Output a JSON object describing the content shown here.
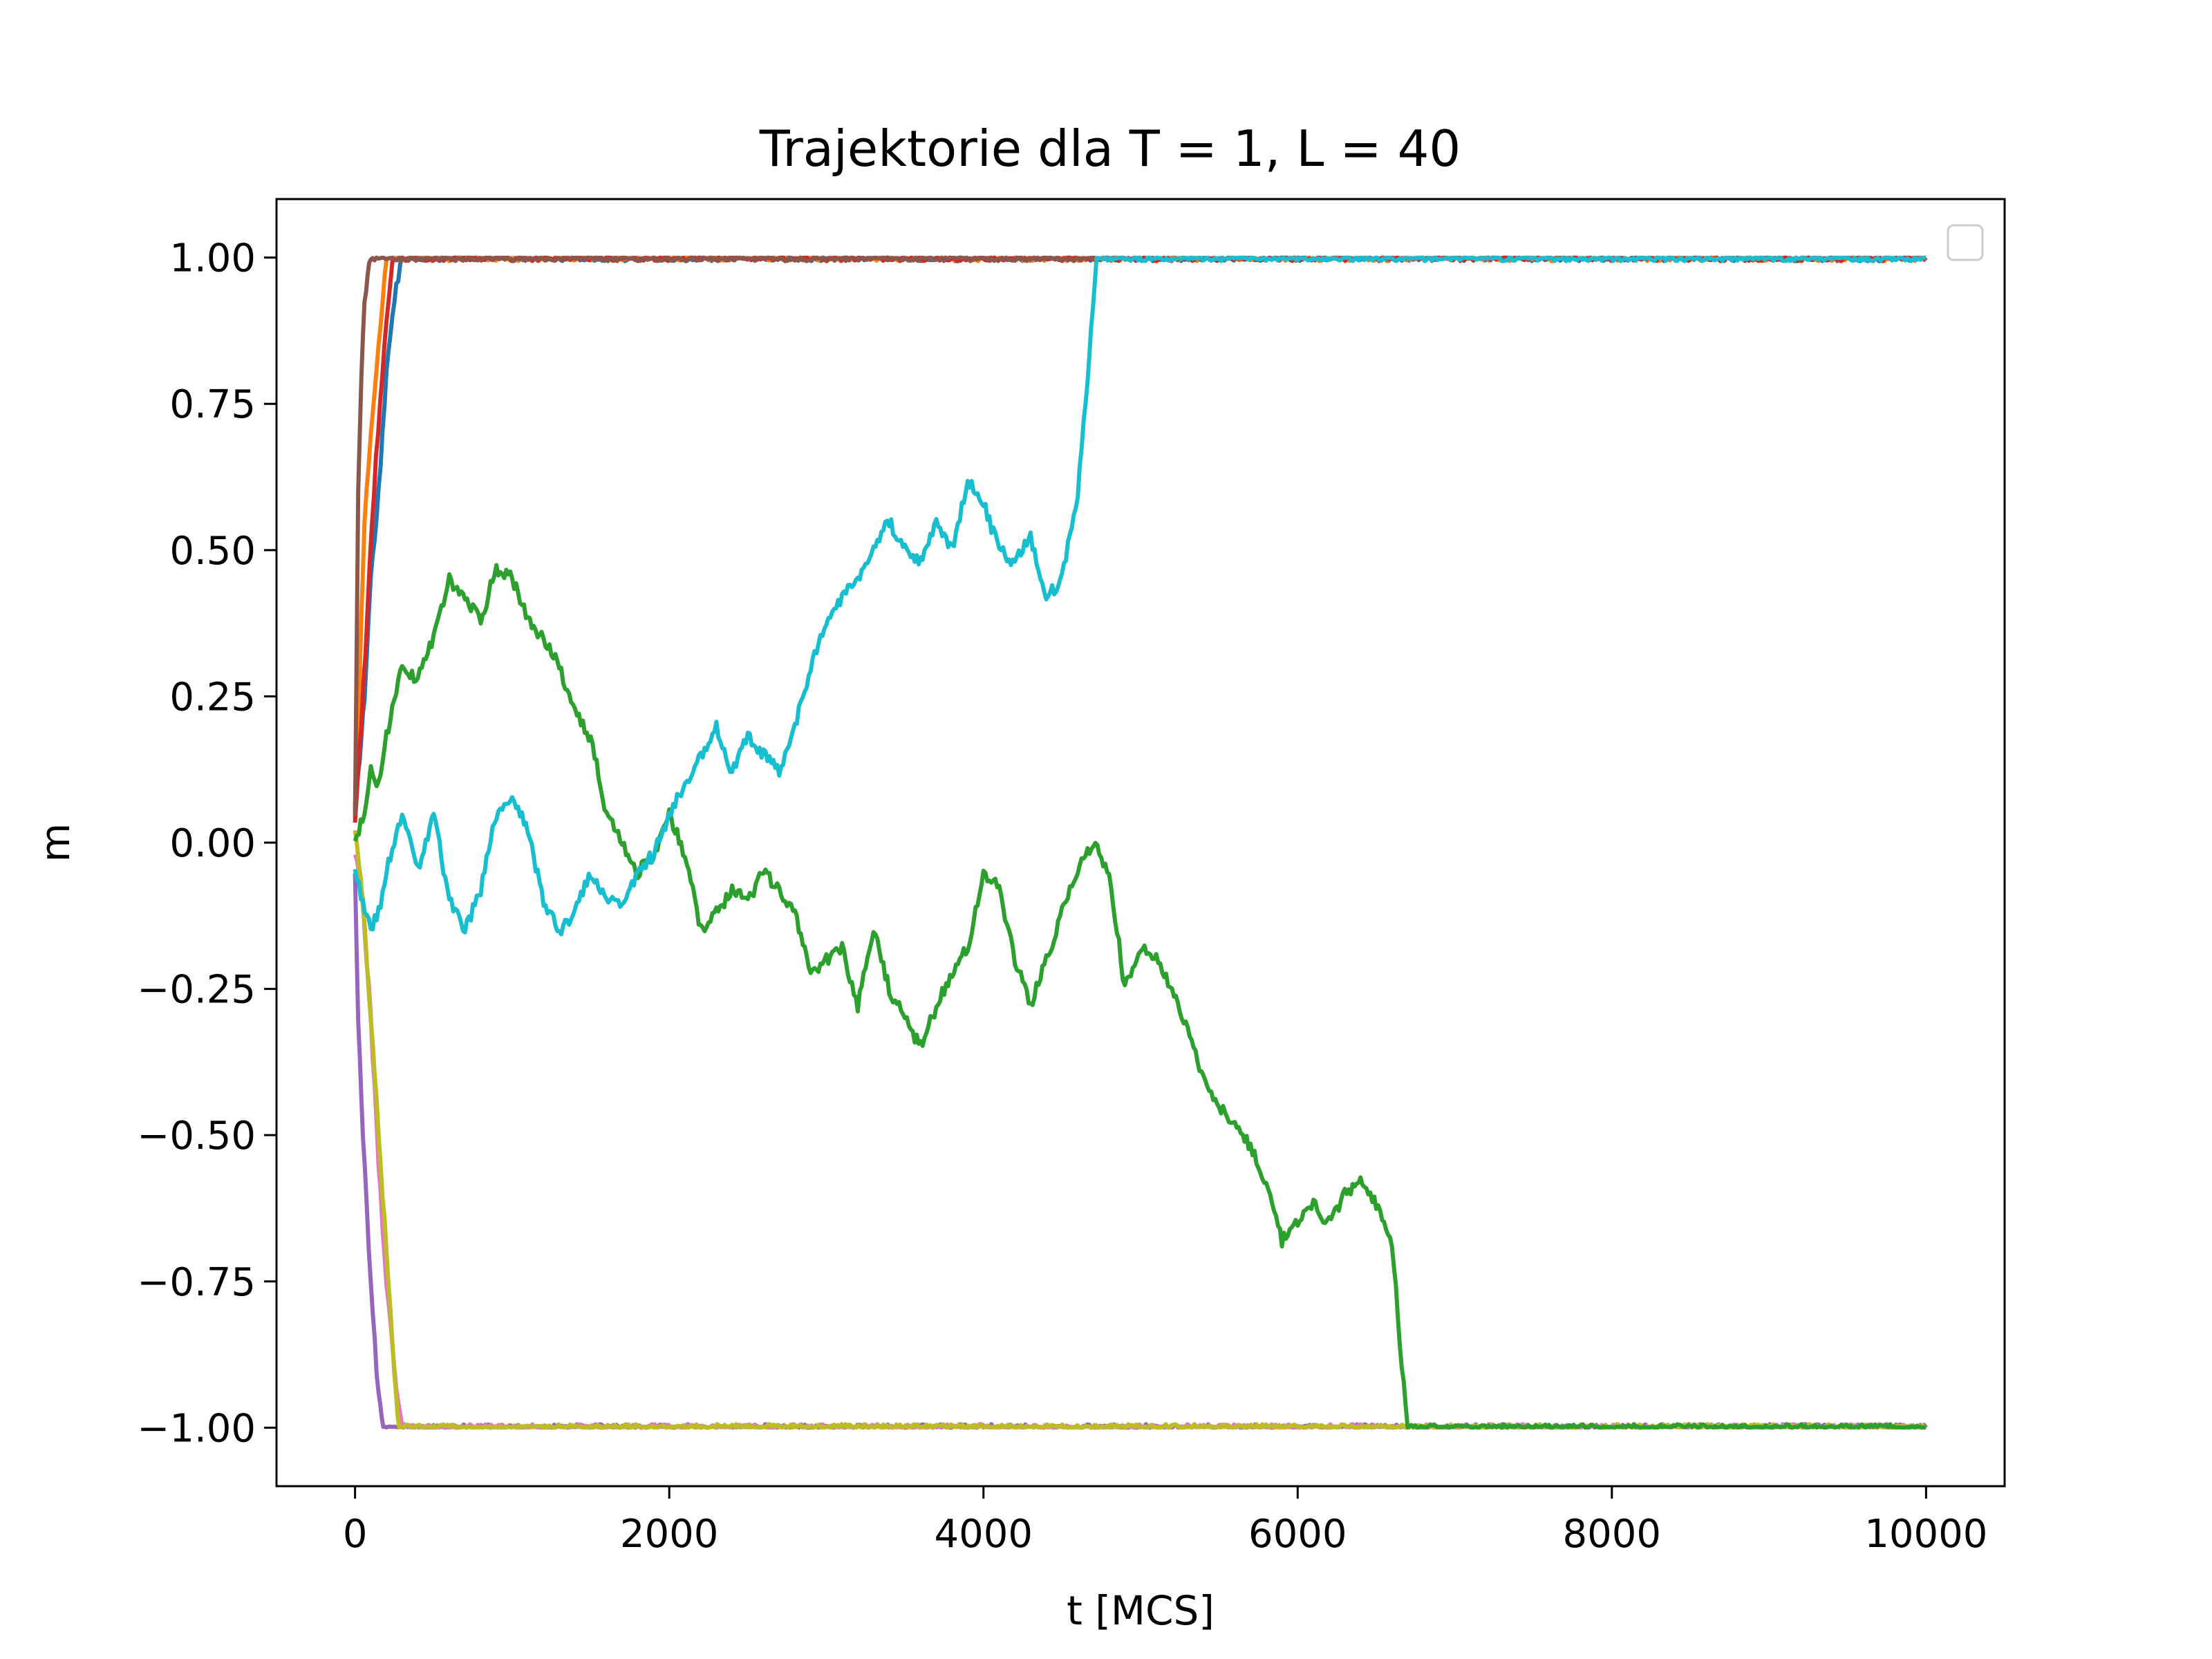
{
  "chart_data": {
    "type": "line",
    "title": "Trajektorie dla T = 1, L = 40",
    "xlabel": "t [MCS]",
    "ylabel": "m",
    "xlim": [
      -500,
      10500
    ],
    "ylim": [
      -1.1,
      1.1
    ],
    "xticks": [
      0,
      2000,
      4000,
      6000,
      8000,
      10000
    ],
    "xtick_labels": [
      "0",
      "2000",
      "4000",
      "6000",
      "8000",
      "10000"
    ],
    "yticks": [
      1.0,
      0.75,
      0.5,
      0.25,
      0.0,
      -0.25,
      -0.5,
      -0.75,
      -1.0
    ],
    "ytick_labels": [
      "1.00",
      "0.75",
      "0.50",
      "0.25",
      "0.00",
      "−0.25",
      "−0.50",
      "−0.75",
      "−1.00"
    ],
    "grid": false,
    "legend": "top-right",
    "series": [
      {
        "color": "#1f77b4",
        "x": [
          0,
          30,
          60,
          100,
          150,
          200,
          250,
          300,
          10000
        ],
        "y": [
          0.05,
          0.15,
          0.25,
          0.45,
          0.6,
          0.8,
          0.93,
          1.0,
          1.0
        ]
      },
      {
        "color": "#ff7f0e",
        "x": [
          0,
          30,
          60,
          100,
          150,
          200,
          10000
        ],
        "y": [
          0.07,
          0.3,
          0.55,
          0.7,
          0.85,
          1.0,
          1.0
        ]
      },
      {
        "color": "#d62728",
        "x": [
          0,
          40,
          80,
          120,
          160,
          200,
          240,
          10000
        ],
        "y": [
          0.04,
          0.2,
          0.4,
          0.6,
          0.75,
          0.9,
          1.0,
          1.0
        ]
      },
      {
        "color": "#8c564b",
        "x": [
          0,
          20,
          40,
          60,
          80,
          100,
          4720
        ],
        "y": [
          0.05,
          0.6,
          0.8,
          0.92,
          0.97,
          1.0,
          1.0
        ]
      },
      {
        "color": "#9467bd",
        "x": [
          0,
          20,
          50,
          100,
          150,
          180,
          200,
          10000
        ],
        "y": [
          -0.05,
          -0.3,
          -0.5,
          -0.75,
          -0.95,
          -1.0,
          -1.0,
          -1.0
        ]
      },
      {
        "color": "#e377c2",
        "x": [
          0,
          50,
          100,
          150,
          200,
          250,
          300,
          10000
        ],
        "y": [
          -0.02,
          -0.1,
          -0.3,
          -0.55,
          -0.75,
          -0.9,
          -1.0,
          -1.0
        ]
      },
      {
        "color": "#bcbd22",
        "x": [
          0,
          50,
          100,
          150,
          200,
          250,
          280,
          300,
          10000
        ],
        "y": [
          0.02,
          -0.1,
          -0.3,
          -0.5,
          -0.7,
          -0.9,
          -1.0,
          -1.0,
          -1.0
        ]
      },
      {
        "color": "#2ca02c",
        "x": [
          0,
          60,
          100,
          150,
          200,
          300,
          400,
          500,
          600,
          700,
          800,
          900,
          1000,
          1100,
          1200,
          1300,
          1400,
          1500,
          1600,
          1700,
          1800,
          1900,
          2000,
          2100,
          2200,
          2300,
          2400,
          2500,
          2600,
          2700,
          2800,
          2900,
          3000,
          3100,
          3200,
          3300,
          3400,
          3500,
          3600,
          3700,
          3800,
          3900,
          4000,
          4100,
          4200,
          4300,
          4400,
          4500,
          4600,
          4700,
          4800,
          4900,
          5000,
          5100,
          5200,
          5300,
          5400,
          5500,
          5600,
          5700,
          5800,
          5900,
          6000,
          6100,
          6200,
          6300,
          6400,
          6500,
          6600,
          6650,
          6700,
          10000
        ],
        "y": [
          0.0,
          0.05,
          0.12,
          0.1,
          0.18,
          0.3,
          0.28,
          0.35,
          0.45,
          0.42,
          0.38,
          0.47,
          0.45,
          0.38,
          0.35,
          0.3,
          0.22,
          0.18,
          0.05,
          0.0,
          -0.05,
          -0.02,
          0.05,
          -0.02,
          -0.15,
          -0.12,
          -0.08,
          -0.1,
          -0.05,
          -0.08,
          -0.12,
          -0.22,
          -0.2,
          -0.18,
          -0.28,
          -0.15,
          -0.25,
          -0.3,
          -0.35,
          -0.28,
          -0.22,
          -0.18,
          -0.05,
          -0.08,
          -0.2,
          -0.28,
          -0.2,
          -0.12,
          -0.05,
          0.0,
          -0.05,
          -0.25,
          -0.18,
          -0.2,
          -0.25,
          -0.32,
          -0.4,
          -0.45,
          -0.48,
          -0.52,
          -0.58,
          -0.68,
          -0.65,
          -0.62,
          -0.65,
          -0.6,
          -0.58,
          -0.62,
          -0.68,
          -0.85,
          -1.0,
          -1.0
        ]
      },
      {
        "color": "#17becf",
        "x": [
          0,
          50,
          100,
          150,
          200,
          300,
          400,
          500,
          600,
          700,
          800,
          900,
          1000,
          1100,
          1200,
          1300,
          1400,
          1500,
          1600,
          1700,
          1800,
          1900,
          2000,
          2100,
          2200,
          2300,
          2400,
          2500,
          2600,
          2700,
          2800,
          2900,
          3000,
          3100,
          3200,
          3300,
          3400,
          3500,
          3600,
          3700,
          3800,
          3900,
          4000,
          4100,
          4200,
          4300,
          4400,
          4500,
          4600,
          4650,
          4720,
          10000
        ],
        "y": [
          -0.05,
          -0.1,
          -0.15,
          -0.12,
          -0.05,
          0.05,
          -0.05,
          0.05,
          -0.1,
          -0.15,
          -0.08,
          0.05,
          0.08,
          0.02,
          -0.1,
          -0.15,
          -0.12,
          -0.05,
          -0.1,
          -0.1,
          -0.05,
          -0.02,
          0.05,
          0.1,
          0.15,
          0.2,
          0.12,
          0.18,
          0.15,
          0.12,
          0.2,
          0.3,
          0.38,
          0.42,
          0.45,
          0.5,
          0.55,
          0.5,
          0.48,
          0.55,
          0.5,
          0.62,
          0.58,
          0.5,
          0.48,
          0.52,
          0.42,
          0.45,
          0.6,
          0.75,
          1.0,
          1.0
        ]
      }
    ]
  }
}
